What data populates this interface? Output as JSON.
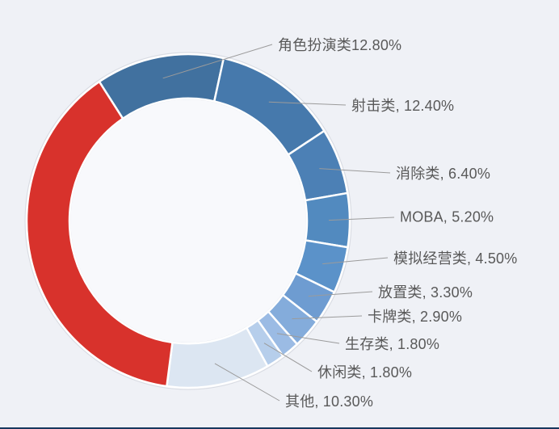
{
  "page": {
    "background_color": "#eff1f6",
    "bottom_rule_color": "#17375e"
  },
  "chart_data": {
    "type": "pie",
    "subtype": "donut",
    "direction": "clockwise",
    "start_angle_deg": -33.4,
    "hole_ratio": 0.735,
    "grid": "off",
    "legend": "none",
    "label_text_color": "#595959",
    "leader_line_color": "#9b9b9b",
    "categories": [
      "角色扮演类",
      "射击类",
      "消除类",
      "MOBA",
      "模拟经营类",
      "放置类",
      "卡牌类",
      "生存类",
      "休闲类",
      "其他"
    ],
    "values": [
      12.8,
      12.4,
      6.4,
      5.2,
      4.5,
      3.3,
      2.9,
      1.8,
      1.8,
      10.3
    ],
    "segments": [
      {
        "name": "角色扮演类",
        "value": 12.8,
        "label": "角色扮演类12.80%",
        "color": "#41719F"
      },
      {
        "name": "射击类",
        "value": 12.4,
        "label": "射击类, 12.40%",
        "color": "#4679AC"
      },
      {
        "name": "消除类",
        "value": 6.4,
        "label": "消除类, 6.40%",
        "color": "#4C80B5"
      },
      {
        "name": "MOBA",
        "value": 5.2,
        "label": "MOBA, 5.20%",
        "color": "#528ABF"
      },
      {
        "name": "模拟经营类",
        "value": 4.5,
        "label": "模拟经营类, 4.50%",
        "color": "#5B92C9"
      },
      {
        "name": "放置类",
        "value": 3.3,
        "label": "放置类, 3.30%",
        "color": "#6E9CD1"
      },
      {
        "name": "卡牌类",
        "value": 2.9,
        "label": "卡牌类, 2.90%",
        "color": "#84ACDB"
      },
      {
        "name": "生存类",
        "value": 1.8,
        "label": "生存类, 1.80%",
        "color": "#9BBBE4"
      },
      {
        "name": "休闲类",
        "value": 1.8,
        "label": "休闲类, 1.80%",
        "color": "#B6CEEB"
      },
      {
        "name": "其他",
        "value": 10.3,
        "label": "其他, 10.30%",
        "color": "#DCE6F2"
      },
      {
        "name": "",
        "value": 38.6,
        "label": "",
        "color": "#D8322C"
      }
    ]
  }
}
